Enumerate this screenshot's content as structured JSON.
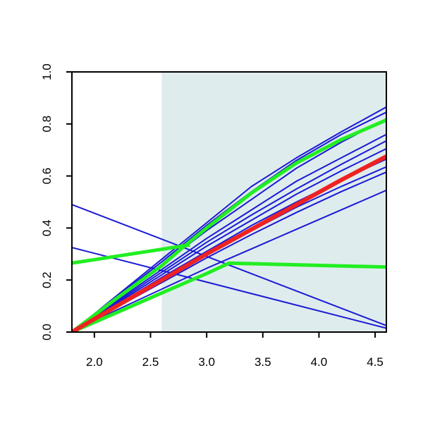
{
  "chart_data": {
    "type": "line",
    "title": "",
    "xlabel": "",
    "ylabel": "",
    "xlim": [
      1.8,
      4.6
    ],
    "ylim": [
      0.0,
      1.0
    ],
    "x_ticks": [
      2.0,
      2.5,
      3.0,
      3.5,
      4.0,
      4.5
    ],
    "x_tick_labels": [
      "2.0",
      "2.5",
      "3.0",
      "3.5",
      "4.0",
      "4.5"
    ],
    "y_ticks": [
      0.0,
      0.2,
      0.4,
      0.6,
      0.8,
      1.0
    ],
    "y_tick_labels": [
      "0.0",
      "0.2",
      "0.4",
      "0.6",
      "0.8",
      "1.0"
    ],
    "grid": false,
    "legend": "none",
    "shaded_region": {
      "x": [
        2.6,
        4.6
      ],
      "color": "#dfeced"
    },
    "colors": {
      "background_curves": "#1a1ad6",
      "highlight_green": "#22ee22",
      "mean_red": "#ee2222"
    },
    "series": [
      {
        "color": "#1a1ad6",
        "width": 2,
        "x": [
          1.8,
          2.2,
          2.6,
          3.0,
          3.4,
          3.8,
          4.2,
          4.6
        ],
        "y": [
          0.0,
          0.14,
          0.28,
          0.42,
          0.56,
          0.67,
          0.77,
          0.865
        ]
      },
      {
        "color": "#1a1ad6",
        "width": 2,
        "x": [
          1.8,
          2.2,
          2.6,
          3.0,
          3.4,
          3.8,
          4.2,
          4.6
        ],
        "y": [
          0.0,
          0.135,
          0.27,
          0.41,
          0.54,
          0.66,
          0.76,
          0.845
        ]
      },
      {
        "color": "#1a1ad6",
        "width": 2,
        "x": [
          1.8,
          2.2,
          2.6,
          3.0,
          3.4,
          3.8,
          4.2,
          4.6
        ],
        "y": [
          0.0,
          0.13,
          0.26,
          0.39,
          0.51,
          0.63,
          0.73,
          0.82
        ]
      },
      {
        "color": "#1a1ad6",
        "width": 2,
        "x": [
          1.8,
          2.2,
          2.6,
          3.0,
          3.4,
          3.8,
          4.2,
          4.6
        ],
        "y": [
          0.0,
          0.12,
          0.24,
          0.36,
          0.47,
          0.58,
          0.67,
          0.76
        ]
      },
      {
        "color": "#1a1ad6",
        "width": 2,
        "x": [
          1.8,
          2.2,
          2.6,
          3.0,
          3.4,
          3.8,
          4.2,
          4.6
        ],
        "y": [
          0.0,
          0.115,
          0.23,
          0.345,
          0.45,
          0.55,
          0.645,
          0.735
        ]
      },
      {
        "color": "#1a1ad6",
        "width": 2,
        "x": [
          1.8,
          2.2,
          2.6,
          3.0,
          3.4,
          3.8,
          4.2,
          4.6
        ],
        "y": [
          0.0,
          0.11,
          0.22,
          0.33,
          0.43,
          0.53,
          0.62,
          0.705
        ]
      },
      {
        "color": "#1a1ad6",
        "width": 2,
        "x": [
          1.8,
          2.2,
          2.6,
          3.0,
          3.4,
          3.8,
          4.2,
          4.6
        ],
        "y": [
          0.0,
          0.105,
          0.21,
          0.31,
          0.41,
          0.5,
          0.585,
          0.665
        ]
      },
      {
        "color": "#1a1ad6",
        "width": 2,
        "x": [
          1.8,
          2.2,
          2.6,
          3.0,
          3.4,
          3.8,
          4.2,
          4.6
        ],
        "y": [
          0.0,
          0.1,
          0.2,
          0.295,
          0.39,
          0.48,
          0.56,
          0.635
        ]
      },
      {
        "color": "#1a1ad6",
        "width": 2,
        "x": [
          1.8,
          2.2,
          2.6,
          3.0,
          3.4,
          3.8,
          4.2,
          4.6
        ],
        "y": [
          0.0,
          0.095,
          0.19,
          0.285,
          0.375,
          0.46,
          0.54,
          0.615
        ]
      },
      {
        "color": "#1a1ad6",
        "width": 2,
        "x": [
          1.8,
          2.2,
          2.6,
          3.0,
          3.4,
          3.8,
          4.2,
          4.6
        ],
        "y": [
          0.0,
          0.085,
          0.165,
          0.245,
          0.32,
          0.395,
          0.47,
          0.545
        ]
      },
      {
        "color": "#1a1ad6",
        "width": 2,
        "x": [
          1.8,
          4.6
        ],
        "y": [
          0.49,
          0.025
        ]
      },
      {
        "color": "#1a1ad6",
        "width": 2,
        "x": [
          1.8,
          4.6
        ],
        "y": [
          0.325,
          0.015
        ]
      },
      {
        "color": "#22ee22",
        "width": 5,
        "x": [
          1.8,
          2.2,
          2.6,
          2.8,
          3.0,
          3.4,
          3.8,
          4.2,
          4.6
        ],
        "y": [
          0.0,
          0.13,
          0.255,
          0.33,
          0.4,
          0.535,
          0.65,
          0.74,
          0.815
        ]
      },
      {
        "color": "#22ee22",
        "width": 5,
        "x": [
          1.8,
          2.2,
          2.6,
          3.0,
          3.2,
          4.6
        ],
        "y": [
          0.0,
          0.075,
          0.15,
          0.225,
          0.265,
          0.25
        ]
      },
      {
        "color": "#22ee22",
        "width": 5,
        "x": [
          1.8,
          2.85
        ],
        "y": [
          0.265,
          0.335
        ]
      },
      {
        "color": "#ee2222",
        "width": 6,
        "x": [
          1.8,
          2.2,
          2.6,
          3.0,
          3.4,
          3.8,
          4.2,
          4.6
        ],
        "y": [
          0.0,
          0.1,
          0.2,
          0.3,
          0.395,
          0.49,
          0.585,
          0.675
        ]
      }
    ]
  }
}
